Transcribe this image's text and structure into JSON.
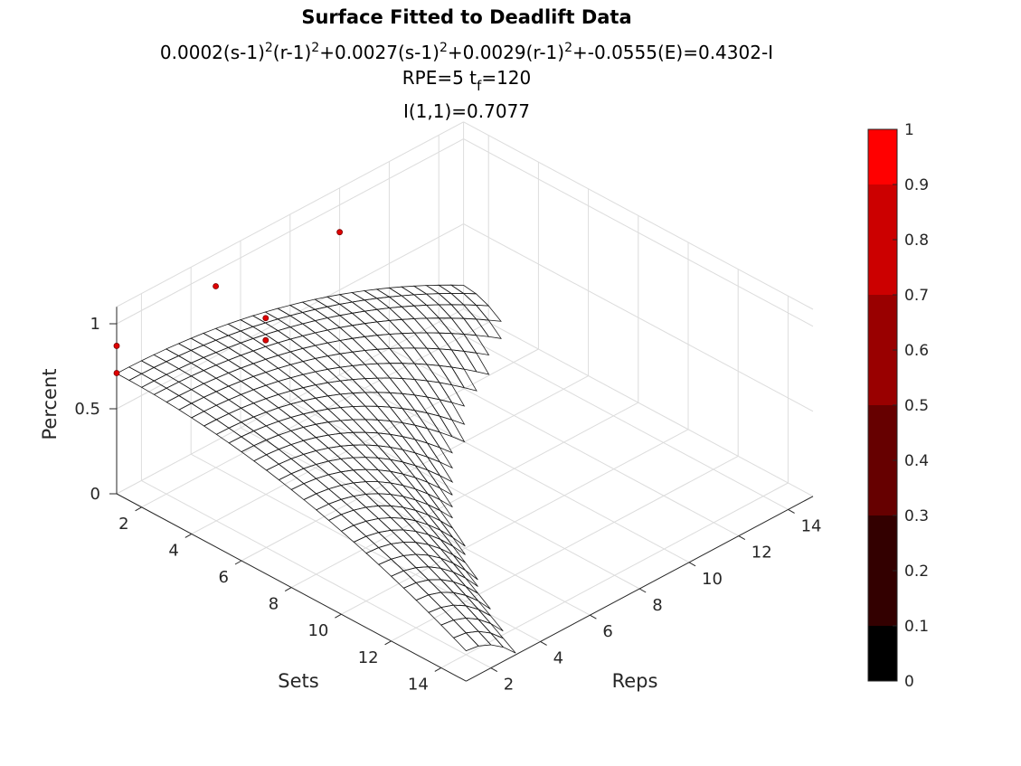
{
  "title": "Surface Fitted to Deadlift Data",
  "subtitle_line1": {
    "parts": [
      "0.0002(s-1)",
      "2",
      "(r-1)",
      "2",
      "+0.0027(s-1)",
      "2",
      "+0.0029(r-1)",
      "2",
      "+-0.0555(E)=0.4302-I"
    ]
  },
  "subtitle_line2": {
    "prefix": "RPE=5  t",
    "subscript": "f",
    "suffix": "=120"
  },
  "subtitle_line3": "I(1,1)=0.7077",
  "chart_data": {
    "type": "surface",
    "equation": "0.0002(s-1)^2(r-1)^2+0.0027(s-1)^2+0.0029(r-1)^2+-0.0555(E)=0.4302-I",
    "coefficients": {
      "a": 0.0002,
      "b": 0.0027,
      "c": 0.0029,
      "d": -0.0555,
      "k": 0.4302
    },
    "rpe": 5,
    "t_f": 120,
    "intercept_label": "I(1,1)=0.7077",
    "xlabel": "Reps",
    "ylabel": "Sets",
    "zlabel": "Percent",
    "xlim": [
      1,
      15
    ],
    "ylim": [
      1,
      15
    ],
    "zlim": [
      0,
      1.1
    ],
    "x_ticks": [
      2,
      4,
      6,
      8,
      10,
      12,
      14
    ],
    "y_ticks": [
      2,
      4,
      6,
      8,
      10,
      12,
      14
    ],
    "z_ticks": [
      0,
      0.5,
      1
    ],
    "z_tick_labels": [
      "0",
      "0.5",
      "1"
    ],
    "data_points": [
      {
        "reps": 1,
        "sets": 1,
        "percent": 0.87
      },
      {
        "reps": 1,
        "sets": 1,
        "percent": 0.71
      },
      {
        "reps": 5,
        "sets": 1,
        "percent": 0.91
      },
      {
        "reps": 5,
        "sets": 3,
        "percent": 0.88
      },
      {
        "reps": 5,
        "sets": 3,
        "percent": 0.75
      },
      {
        "reps": 10,
        "sets": 1,
        "percent": 0.84
      }
    ],
    "colorbar": {
      "colormap": "black-to-red, 10 steps",
      "limits": [
        0,
        1
      ],
      "ticks": [
        "0",
        "0.1",
        "0.2",
        "0.3",
        "0.4",
        "0.5",
        "0.6",
        "0.7",
        "0.8",
        "0.9",
        "1"
      ],
      "colors": [
        "#000000",
        "#000000",
        "#330000",
        "#330000",
        "#660000",
        "#660000",
        "#990000",
        "#990000",
        "#cc0000",
        "#cc0000",
        "#ff0000"
      ]
    },
    "grid": true,
    "view": "3-D isometric, Sets axis front-left, Reps axis front-right"
  }
}
